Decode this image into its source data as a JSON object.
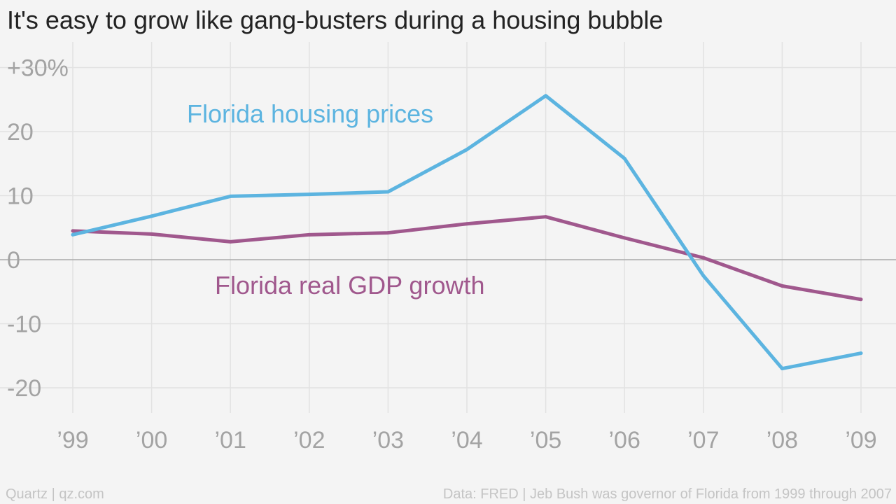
{
  "title": "It's easy to grow like gang-busters during a housing bubble",
  "footer": {
    "left": "Quartz | qz.com",
    "right": "Data: FRED | Jeb Bush was governor of Florida from 1999 through 2007"
  },
  "colors": {
    "housing": "#5cb4e0",
    "gdp": "#a0588d",
    "grid": "#e2e2e2",
    "zero": "#aaaaaa"
  },
  "chart_data": {
    "type": "line",
    "categories": [
      "’99",
      "’00",
      "’01",
      "’02",
      "’03",
      "’04",
      "’05",
      "’06",
      "’07",
      "’08",
      "’09"
    ],
    "y_ticks": [
      {
        "value": 30,
        "label": "+30%"
      },
      {
        "value": 20,
        "label": "20"
      },
      {
        "value": 10,
        "label": "10"
      },
      {
        "value": 0,
        "label": "0"
      },
      {
        "value": -10,
        "label": "-10"
      },
      {
        "value": -20,
        "label": "-20"
      }
    ],
    "ylim": [
      -23,
      32
    ],
    "grid": true,
    "series": [
      {
        "name": "Florida housing prices",
        "key": "housing",
        "values": [
          3.9,
          6.8,
          9.9,
          10.2,
          10.6,
          17.2,
          25.6,
          15.8,
          -2.5,
          -17.0,
          -14.6
        ]
      },
      {
        "name": "Florida real GDP growth",
        "key": "gdp",
        "values": [
          4.5,
          4.0,
          2.8,
          3.9,
          4.2,
          5.6,
          6.7,
          3.4,
          0.3,
          -4.1,
          -6.2
        ]
      }
    ]
  }
}
